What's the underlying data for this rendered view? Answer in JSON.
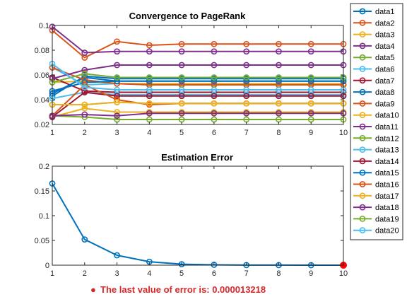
{
  "chart_data": [
    {
      "type": "line",
      "title": "Convergence to PageRank",
      "xlim": [
        1,
        10
      ],
      "ylim": [
        0.02,
        0.1
      ],
      "xticks": [
        "1",
        "2",
        "3",
        "4",
        "5",
        "6",
        "7",
        "8",
        "9",
        "10"
      ],
      "yticks": [
        "0.02",
        "0.04",
        "0.06",
        "0.08",
        "0.1"
      ],
      "x": [
        1,
        2,
        3,
        4,
        5,
        6,
        7,
        8,
        9,
        10
      ],
      "grid": false,
      "legend_position": "outside-right",
      "series": [
        {
          "name": "data1",
          "color": "#0072BD",
          "values": [
            0.045,
            0.058,
            0.055,
            0.055,
            0.055,
            0.055,
            0.055,
            0.055,
            0.055,
            0.055
          ]
        },
        {
          "name": "data2",
          "color": "#D95319",
          "values": [
            0.096,
            0.074,
            0.087,
            0.084,
            0.085,
            0.085,
            0.085,
            0.085,
            0.085,
            0.085
          ]
        },
        {
          "name": "data3",
          "color": "#EDB120",
          "values": [
            0.054,
            0.055,
            0.053,
            0.053,
            0.053,
            0.053,
            0.053,
            0.053,
            0.053,
            0.053
          ]
        },
        {
          "name": "data4",
          "color": "#7E2F8E",
          "values": [
            0.099,
            0.078,
            0.079,
            0.079,
            0.079,
            0.079,
            0.079,
            0.079,
            0.079,
            0.079
          ]
        },
        {
          "name": "data5",
          "color": "#77AC30",
          "values": [
            0.036,
            0.036,
            0.038,
            0.037,
            0.037,
            0.037,
            0.037,
            0.037,
            0.037,
            0.037
          ]
        },
        {
          "name": "data6",
          "color": "#4DBEEE",
          "values": [
            0.066,
            0.052,
            0.053,
            0.052,
            0.052,
            0.052,
            0.052,
            0.052,
            0.052,
            0.052
          ]
        },
        {
          "name": "data7",
          "color": "#A2142F",
          "values": [
            0.058,
            0.047,
            0.046,
            0.046,
            0.046,
            0.046,
            0.046,
            0.046,
            0.046,
            0.046
          ]
        },
        {
          "name": "data8",
          "color": "#0072BD",
          "values": [
            0.043,
            0.059,
            0.057,
            0.057,
            0.057,
            0.057,
            0.057,
            0.057,
            0.057,
            0.057
          ]
        },
        {
          "name": "data9",
          "color": "#D95319",
          "values": [
            0.066,
            0.056,
            0.053,
            0.052,
            0.052,
            0.052,
            0.052,
            0.052,
            0.052,
            0.052
          ]
        },
        {
          "name": "data10",
          "color": "#EDB120",
          "values": [
            0.026,
            0.033,
            0.03,
            0.03,
            0.03,
            0.03,
            0.03,
            0.03,
            0.03,
            0.03
          ]
        },
        {
          "name": "data11",
          "color": "#7E2F8E",
          "values": [
            0.057,
            0.064,
            0.068,
            0.068,
            0.068,
            0.068,
            0.068,
            0.068,
            0.068,
            0.068
          ]
        },
        {
          "name": "data12",
          "color": "#77AC30",
          "values": [
            0.027,
            0.026,
            0.024,
            0.024,
            0.024,
            0.024,
            0.024,
            0.024,
            0.024,
            0.024
          ]
        },
        {
          "name": "data13",
          "color": "#4DBEEE",
          "values": [
            0.041,
            0.046,
            0.044,
            0.044,
            0.044,
            0.044,
            0.044,
            0.044,
            0.044,
            0.044
          ]
        },
        {
          "name": "data14",
          "color": "#A2142F",
          "values": [
            0.026,
            0.046,
            0.043,
            0.043,
            0.043,
            0.043,
            0.043,
            0.043,
            0.043,
            0.043
          ]
        },
        {
          "name": "data15",
          "color": "#0072BD",
          "values": [
            0.047,
            0.054,
            0.055,
            0.055,
            0.055,
            0.055,
            0.055,
            0.055,
            0.055,
            0.055
          ]
        },
        {
          "name": "data16",
          "color": "#D95319",
          "values": [
            0.027,
            0.052,
            0.04,
            0.036,
            0.037,
            0.037,
            0.037,
            0.037,
            0.037,
            0.037
          ]
        },
        {
          "name": "data17",
          "color": "#EDB120",
          "values": [
            0.036,
            0.036,
            0.038,
            0.037,
            0.037,
            0.037,
            0.037,
            0.037,
            0.037,
            0.037
          ]
        },
        {
          "name": "data18",
          "color": "#7E2F8E",
          "values": [
            0.027,
            0.028,
            0.027,
            0.029,
            0.029,
            0.029,
            0.029,
            0.029,
            0.029,
            0.029
          ]
        },
        {
          "name": "data19",
          "color": "#77AC30",
          "values": [
            0.054,
            0.061,
            0.058,
            0.058,
            0.058,
            0.058,
            0.058,
            0.058,
            0.058,
            0.058
          ]
        },
        {
          "name": "data20",
          "color": "#4DBEEE",
          "values": [
            0.069,
            0.05,
            0.048,
            0.048,
            0.048,
            0.048,
            0.048,
            0.048,
            0.048,
            0.048
          ]
        }
      ]
    },
    {
      "type": "line",
      "title": "Estimation Error",
      "xlim": [
        1,
        10
      ],
      "ylim": [
        0,
        0.2
      ],
      "xticks": [
        "1",
        "2",
        "3",
        "4",
        "5",
        "6",
        "7",
        "8",
        "9",
        "10"
      ],
      "yticks": [
        "0",
        "0.05",
        "0.1",
        "0.15",
        "0.2"
      ],
      "x": [
        1,
        2,
        3,
        4,
        5,
        6,
        7,
        8,
        9,
        10
      ],
      "grid": false,
      "series": [
        {
          "color": "#0072BD",
          "values": [
            0.165,
            0.052,
            0.02,
            0.007,
            0.002,
            0.0008,
            0.0002,
            0.0001,
            3e-05,
            1.3218e-05
          ]
        }
      ],
      "highlight_point": {
        "x": 10,
        "y": 1.3218e-05,
        "color": "#FF0000"
      }
    }
  ],
  "footer": {
    "marker": "●",
    "text": "The last value of error is: 0.000013218",
    "color": "#d62728"
  }
}
